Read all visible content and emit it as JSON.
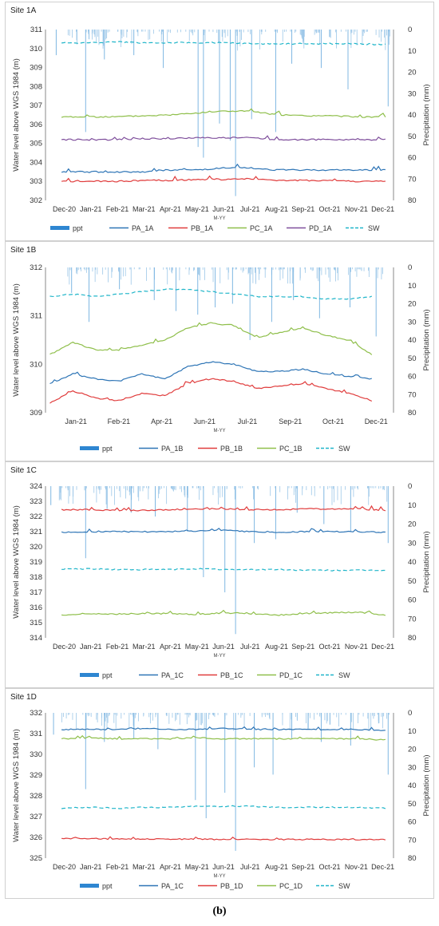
{
  "figure_caption": "(b)",
  "chart_data": [
    {
      "type": "line",
      "title": "Site 1A",
      "xlabel": "M-YY",
      "ylabel": "Water level above WGS 1984 (m)",
      "y2label": "Precipitation (mm)",
      "ylim": [
        302,
        311
      ],
      "y2lim": [
        0,
        80
      ],
      "y2_inverted": true,
      "x_ticks": [
        "Dec-20",
        "Jan-21",
        "Feb-21",
        "Mar-21",
        "Apr-21",
        "May-21",
        "Jun-21",
        "Jul-21",
        "Aug-21",
        "Sep-21",
        "Oct-21",
        "Nov-21",
        "Dec-21"
      ],
      "x_range": [
        0,
        13
      ],
      "y_ticks": [
        302,
        303,
        304,
        305,
        306,
        307,
        308,
        309,
        310,
        311
      ],
      "y2_ticks": [
        0,
        10,
        20,
        30,
        40,
        50,
        60,
        70,
        80
      ],
      "legend": [
        "ppt",
        "PA_1A",
        "PB_1A",
        "PC_1A",
        "PD_1A",
        "SW"
      ],
      "legend_position": "bottom",
      "grid": false,
      "ppt_spikes_mm": [
        [
          0.4,
          12
        ],
        [
          1.5,
          48
        ],
        [
          2.2,
          14
        ],
        [
          3.3,
          12
        ],
        [
          4.4,
          18
        ],
        [
          5.7,
          55
        ],
        [
          5.9,
          60
        ],
        [
          6.5,
          44
        ],
        [
          6.9,
          52
        ],
        [
          7.1,
          78
        ],
        [
          7.7,
          42
        ],
        [
          8.6,
          48
        ],
        [
          9.2,
          16
        ],
        [
          10.3,
          18
        ],
        [
          11.3,
          28
        ],
        [
          12.8,
          36
        ]
      ],
      "series": [
        {
          "name": "PA_1A",
          "color": "#2e75b6",
          "style": "solid",
          "start": 0.6,
          "end": 12.7,
          "values": [
            303.5,
            303.5,
            303.5,
            303.5,
            303.6,
            303.6,
            303.7,
            303.7,
            303.6,
            303.6,
            303.6,
            303.6,
            303.6
          ]
        },
        {
          "name": "PB_1A",
          "color": "#e03c3c",
          "style": "solid",
          "start": 0.6,
          "end": 12.7,
          "values": [
            303.0,
            303.0,
            303.0,
            303.05,
            303.05,
            303.1,
            303.1,
            303.15,
            303.05,
            303.05,
            303.05,
            303.0,
            303.0
          ]
        },
        {
          "name": "PC_1A",
          "color": "#8fbf4b",
          "style": "solid",
          "start": 0.6,
          "end": 12.7,
          "values": [
            306.4,
            306.4,
            306.4,
            306.45,
            306.5,
            306.6,
            306.7,
            306.7,
            306.5,
            306.45,
            306.45,
            306.4,
            306.4
          ]
        },
        {
          "name": "PD_1A",
          "color": "#7f4f9c",
          "style": "solid",
          "start": 0.6,
          "end": 12.7,
          "values": [
            305.2,
            305.2,
            305.2,
            305.25,
            305.25,
            305.3,
            305.3,
            305.3,
            305.2,
            305.2,
            305.2,
            305.2,
            305.2
          ]
        },
        {
          "name": "SW",
          "color": "#1fb5c9",
          "style": "dashed",
          "start": 0.6,
          "end": 12.7,
          "values": [
            310.3,
            310.3,
            310.35,
            310.3,
            310.3,
            310.3,
            310.3,
            310.25,
            310.25,
            310.25,
            310.25,
            310.25,
            310.2
          ]
        }
      ]
    },
    {
      "type": "line",
      "title": "Site 1B",
      "xlabel": "M-YY",
      "ylabel": "Water level above WGS 1984 (m)",
      "y2label": "Precipitation (mm)",
      "ylim": [
        309,
        312
      ],
      "y2lim": [
        0,
        80
      ],
      "y2_inverted": true,
      "x_ticks": [
        "Jan-21",
        "Feb-21",
        "Apr-21",
        "Jun-21",
        "Jul-21",
        "Sep-21",
        "Oct-21",
        "Dec-21"
      ],
      "x_range": [
        0,
        8
      ],
      "y_ticks": [
        309,
        310,
        311,
        312
      ],
      "y2_ticks": [
        0,
        10,
        20,
        30,
        40,
        50,
        60,
        70,
        80
      ],
      "legend": [
        "ppt",
        "PA_1B",
        "PB_1B",
        "PC_1B",
        "SW"
      ],
      "legend_position": "bottom",
      "grid": false,
      "ppt_spikes_mm": [
        [
          0.6,
          14
        ],
        [
          1.0,
          30
        ],
        [
          1.7,
          12
        ],
        [
          2.5,
          18
        ],
        [
          3.0,
          24
        ],
        [
          3.5,
          26
        ],
        [
          3.9,
          22
        ],
        [
          4.3,
          20
        ],
        [
          4.7,
          40
        ],
        [
          5.2,
          30
        ],
        [
          5.7,
          18
        ],
        [
          6.3,
          28
        ],
        [
          7.0,
          22
        ],
        [
          7.6,
          38
        ]
      ],
      "series": [
        {
          "name": "PA_1B",
          "color": "#2e75b6",
          "style": "solid",
          "start": 0.1,
          "end": 7.5,
          "values": [
            309.6,
            309.8,
            309.7,
            309.65,
            309.8,
            309.7,
            309.95,
            310.05,
            310.0,
            309.85,
            309.85,
            309.9,
            309.8,
            309.75,
            309.7
          ]
        },
        {
          "name": "PB_1B",
          "color": "#e03c3c",
          "style": "solid",
          "start": 0.1,
          "end": 7.5,
          "values": [
            309.2,
            309.45,
            309.3,
            309.25,
            309.4,
            309.35,
            309.6,
            309.7,
            309.65,
            309.5,
            309.55,
            309.6,
            309.5,
            309.4,
            309.25
          ]
        },
        {
          "name": "PC_1B",
          "color": "#8fbf4b",
          "style": "solid",
          "start": 0.1,
          "end": 7.5,
          "values": [
            310.2,
            310.45,
            310.3,
            310.3,
            310.4,
            310.5,
            310.75,
            310.85,
            310.8,
            310.55,
            310.65,
            310.75,
            310.6,
            310.5,
            310.2
          ]
        },
        {
          "name": "SW",
          "color": "#1fb5c9",
          "style": "dashed",
          "start": 0.1,
          "end": 7.5,
          "values": [
            311.4,
            311.45,
            311.4,
            311.45,
            311.5,
            311.55,
            311.55,
            311.5,
            311.45,
            311.4,
            311.4,
            311.4,
            311.35,
            311.35,
            311.4
          ]
        }
      ]
    },
    {
      "type": "line",
      "title": "Site 1C",
      "xlabel": "M-YY",
      "ylabel": "Water level above WGS 1984 (m)",
      "y2label": "Precipitation (mm)",
      "ylim": [
        314,
        324
      ],
      "y2lim": [
        0,
        80
      ],
      "y2_inverted": true,
      "x_ticks": [
        "Dec-20",
        "Jan-21",
        "Feb-21",
        "Mar-21",
        "Apr-21",
        "May-21",
        "Jun-21",
        "Jul-21",
        "Aug-21",
        "Sep-21",
        "Oct-21",
        "Nov-21",
        "Dec-21"
      ],
      "x_range": [
        0,
        13
      ],
      "y_ticks": [
        314,
        315,
        316,
        317,
        318,
        319,
        320,
        321,
        322,
        323,
        324
      ],
      "y2_ticks": [
        0,
        10,
        20,
        30,
        40,
        50,
        60,
        70,
        80
      ],
      "legend": [
        "ppt",
        "PA_1C",
        "PB_1C",
        "PD_1C",
        "SW"
      ],
      "legend_position": "bottom",
      "grid": false,
      "ppt_spikes_mm": [
        [
          0.2,
          10
        ],
        [
          1.5,
          38
        ],
        [
          2.3,
          12
        ],
        [
          3.2,
          14
        ],
        [
          4.1,
          16
        ],
        [
          5.3,
          24
        ],
        [
          5.9,
          48
        ],
        [
          6.7,
          56
        ],
        [
          7.1,
          78
        ],
        [
          7.8,
          30
        ],
        [
          8.6,
          28
        ],
        [
          9.4,
          14
        ],
        [
          10.4,
          20
        ],
        [
          11.4,
          24
        ],
        [
          12.8,
          30
        ]
      ],
      "series": [
        {
          "name": "PA_1C",
          "color": "#2e75b6",
          "style": "solid",
          "start": 0.6,
          "end": 12.7,
          "values": [
            320.95,
            321.0,
            321.0,
            321.0,
            321.0,
            321.05,
            321.1,
            321.0,
            320.95,
            321.0,
            321.0,
            321.0,
            320.95
          ]
        },
        {
          "name": "PB_1C",
          "color": "#e03c3c",
          "style": "solid",
          "start": 0.6,
          "end": 12.7,
          "values": [
            322.45,
            322.45,
            322.4,
            322.4,
            322.45,
            322.5,
            322.5,
            322.45,
            322.45,
            322.5,
            322.5,
            322.5,
            322.4
          ]
        },
        {
          "name": "PD_1C",
          "color": "#8fbf4b",
          "style": "solid",
          "start": 0.6,
          "end": 12.7,
          "values": [
            315.5,
            315.6,
            315.55,
            315.6,
            315.6,
            315.55,
            315.65,
            315.6,
            315.5,
            315.6,
            315.65,
            315.7,
            315.5
          ]
        },
        {
          "name": "SW",
          "color": "#1fb5c9",
          "style": "dashed",
          "start": 0.6,
          "end": 12.7,
          "values": [
            318.55,
            318.55,
            318.5,
            318.5,
            318.5,
            318.55,
            318.5,
            318.5,
            318.5,
            318.45,
            318.45,
            318.45,
            318.45
          ]
        }
      ]
    },
    {
      "type": "line",
      "title": "Site 1D",
      "xlabel": "M-YY",
      "ylabel": "Water level above WGS 1984 (m)",
      "y2label": "Precipitation (mm)",
      "ylim": [
        325,
        332
      ],
      "y2lim": [
        0,
        80
      ],
      "y2_inverted": true,
      "x_ticks": [
        "Dec-20",
        "Jan-21",
        "Feb-21",
        "Mar-21",
        "Apr-21",
        "May-21",
        "Jun-21",
        "Jul-21",
        "Aug-21",
        "Sep-21",
        "Oct-21",
        "Nov-21",
        "Dec-21"
      ],
      "x_range": [
        0,
        13
      ],
      "y_ticks": [
        325,
        326,
        327,
        328,
        329,
        330,
        331,
        332
      ],
      "y2_ticks": [
        0,
        10,
        20,
        30,
        40,
        50,
        60,
        70,
        80
      ],
      "legend": [
        "ppt",
        "PA_1C",
        "PB_1D",
        "PC_1D",
        "SW"
      ],
      "legend_position": "bottom",
      "grid": false,
      "ppt_spikes_mm": [
        [
          0.3,
          12
        ],
        [
          1.5,
          42
        ],
        [
          2.2,
          16
        ],
        [
          3.3,
          14
        ],
        [
          4.2,
          20
        ],
        [
          5.6,
          48
        ],
        [
          6.0,
          58
        ],
        [
          6.7,
          44
        ],
        [
          7.1,
          76
        ],
        [
          7.8,
          30
        ],
        [
          8.5,
          34
        ],
        [
          9.2,
          14
        ],
        [
          10.3,
          16
        ],
        [
          11.4,
          18
        ],
        [
          12.8,
          34
        ]
      ],
      "series": [
        {
          "name": "PA_1C",
          "color": "#2e75b6",
          "style": "solid",
          "start": 0.6,
          "end": 12.7,
          "values": [
            331.2,
            331.2,
            331.2,
            331.25,
            331.2,
            331.2,
            331.25,
            331.2,
            331.2,
            331.2,
            331.2,
            331.2,
            331.15
          ]
        },
        {
          "name": "PB_1D",
          "color": "#e03c3c",
          "style": "solid",
          "start": 0.6,
          "end": 12.7,
          "values": [
            325.95,
            325.95,
            325.92,
            325.92,
            325.92,
            325.92,
            325.9,
            325.9,
            325.9,
            325.9,
            325.9,
            325.9,
            325.9
          ]
        },
        {
          "name": "PC_1D",
          "color": "#8fbf4b",
          "style": "solid",
          "start": 0.6,
          "end": 12.7,
          "values": [
            330.75,
            330.8,
            330.75,
            330.75,
            330.75,
            330.8,
            330.75,
            330.75,
            330.75,
            330.75,
            330.75,
            330.75,
            330.7
          ]
        },
        {
          "name": "SW",
          "color": "#1fb5c9",
          "style": "dashed",
          "start": 0.6,
          "end": 12.7,
          "values": [
            327.4,
            327.45,
            327.4,
            327.45,
            327.45,
            327.5,
            327.5,
            327.5,
            327.45,
            327.45,
            327.45,
            327.45,
            327.4
          ]
        }
      ]
    }
  ]
}
